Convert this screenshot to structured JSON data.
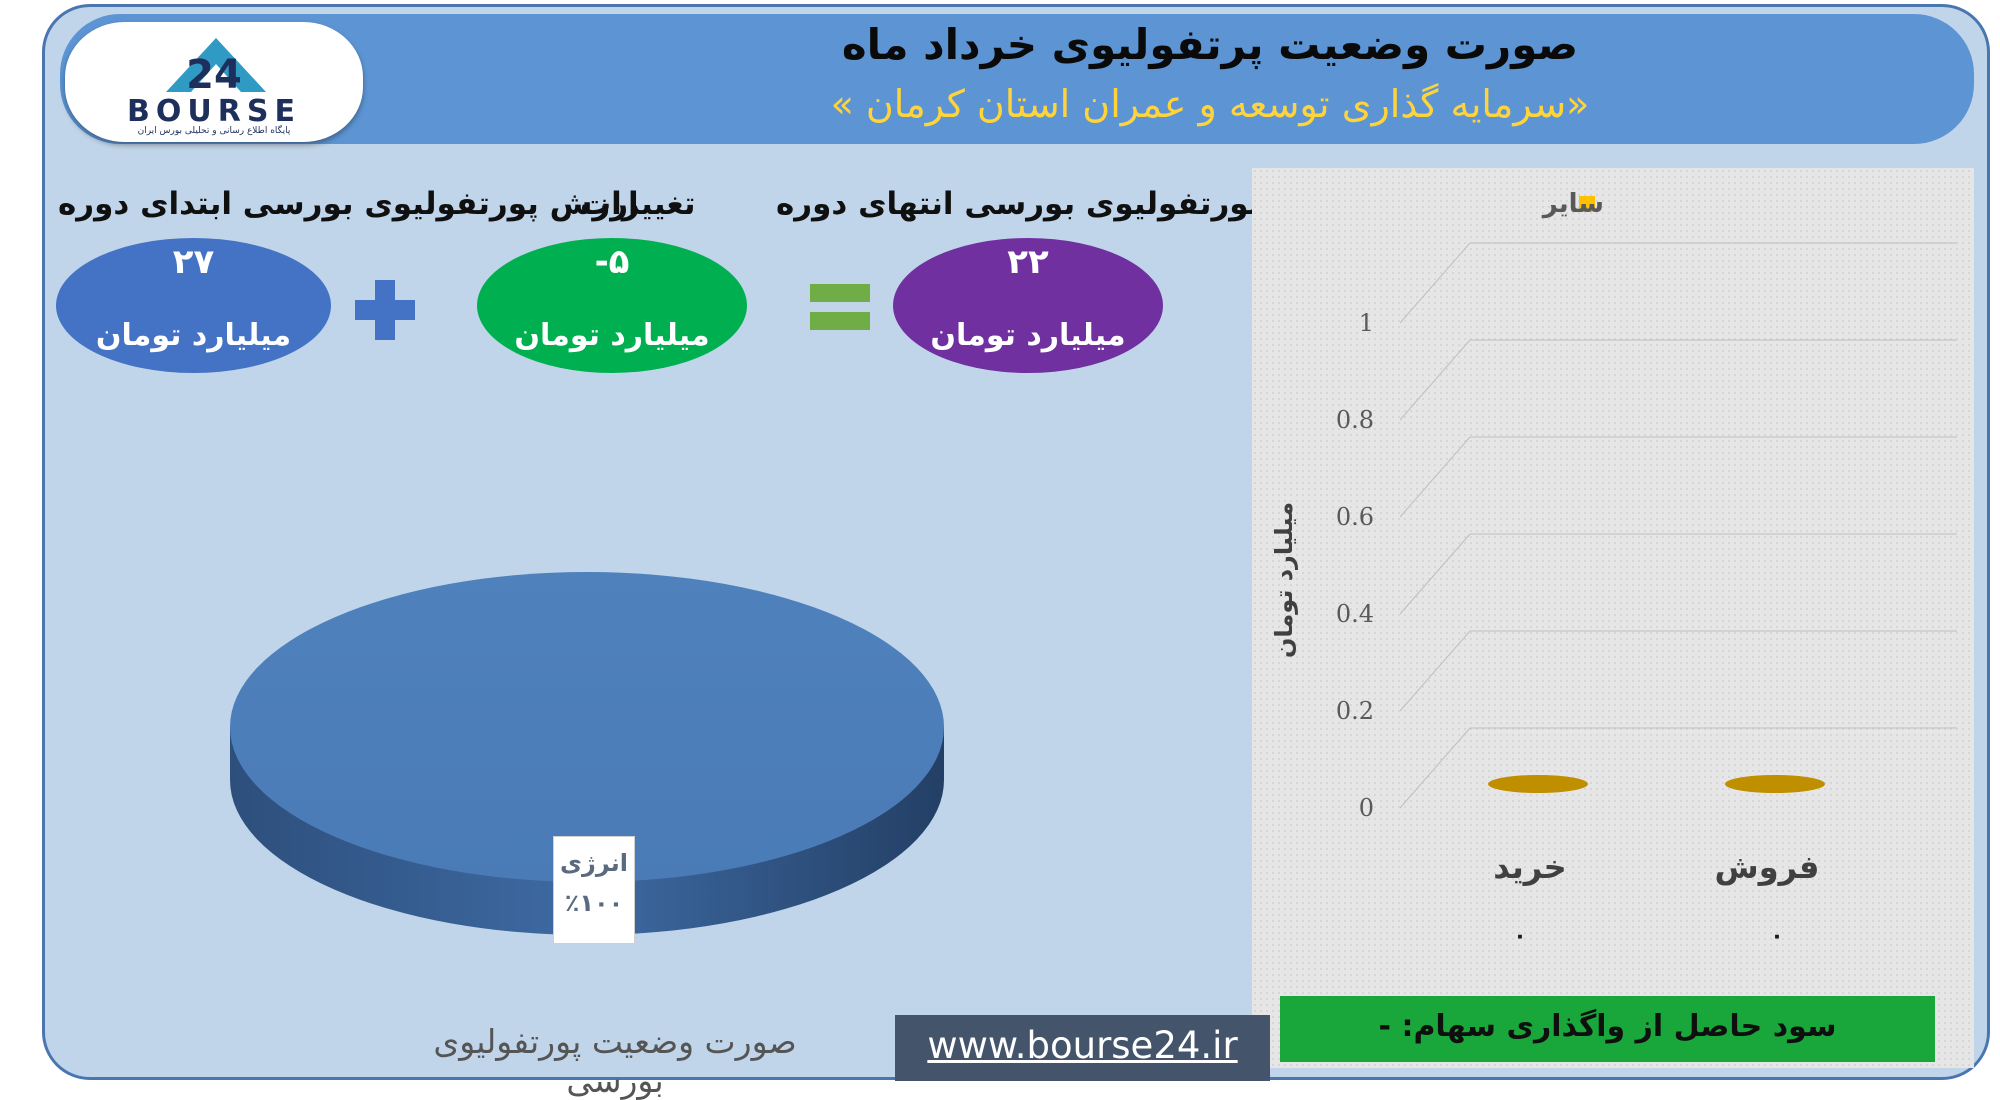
{
  "header": {
    "title": "صورت وضعیت پرتفولیوی خرداد ماه",
    "subtitle": "«سرمایه گذاری توسعه و عمران استان کرمان »",
    "logo_text": "BOURSE",
    "logo_number": "24",
    "logo_tagline": "پایگاه اطلاع رسانی و تحلیلی بورس ایران"
  },
  "summary": {
    "start": {
      "label": "ارزش پورتفولیوی بورسی ابتدای دوره",
      "value": "۲۷",
      "unit": "میلیارد تومان",
      "color": "#4472c4"
    },
    "change": {
      "label": "تغییرات",
      "value": "-۵",
      "unit": "میلیارد تومان",
      "color": "#00b050"
    },
    "end": {
      "label": "ارزش پورتفولیوی بورسی انتهای دوره",
      "value": "۲۲",
      "unit": "میلیارد تومان",
      "color": "#7030a0"
    },
    "plus_symbol": "+",
    "equals_symbol": "=",
    "plus_color": "#4472c4",
    "equals_color": "#70ad47"
  },
  "chart_data": [
    {
      "type": "pie",
      "title": "صورت وضعیت پورتفولیوی بورسی",
      "slices": [
        {
          "label": "انرژی",
          "value": 100,
          "value_label": "٪۱۰۰",
          "color": "#4f81bd"
        }
      ]
    },
    {
      "type": "bar",
      "legend": [
        "سایر"
      ],
      "legend_position": "top",
      "legend_color": "#ffc000",
      "categories": [
        "خرید",
        "فروش"
      ],
      "category_values": [
        "۰",
        "۰"
      ],
      "series": [
        {
          "name": "سایر",
          "values": [
            0,
            0
          ],
          "color": "#bf8f00"
        }
      ],
      "ylabel": "میلیارد تومان",
      "yticks": [
        "0",
        "0.2",
        "0.4",
        "0.6",
        "0.8",
        "1"
      ],
      "ylim": [
        0,
        1
      ],
      "grid": true
    }
  ],
  "footer": {
    "profit_text": "سود حاصل از واگذاری سهام: -",
    "website": "www.bourse24.ir"
  }
}
